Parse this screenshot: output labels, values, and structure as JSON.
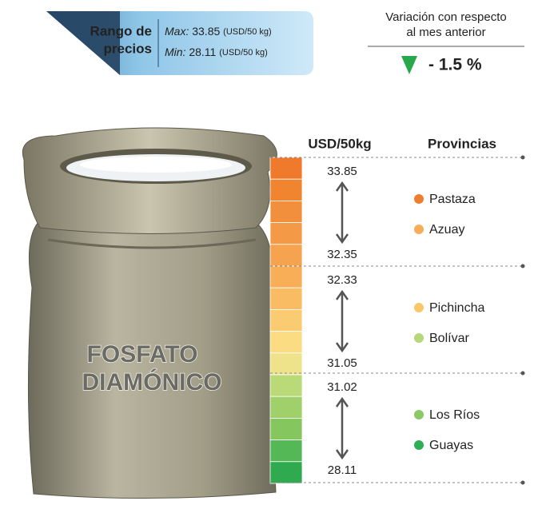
{
  "header": {
    "range_label": [
      "Rango de",
      "precios"
    ],
    "max_label": "Max:",
    "max_value": "33.85",
    "max_unit": "(USD/50 kg)",
    "min_label": "Min:",
    "min_value": "28.11",
    "min_unit": "(USD/50 kg)"
  },
  "variation": {
    "title": [
      "Variación con respecto",
      "al mes anterior"
    ],
    "value": "- 1.5 %",
    "color": "#27a84a"
  },
  "product": [
    "FOSFATO",
    "DIAMÓNICO"
  ],
  "table": {
    "price_header": "USD/50kg",
    "province_header": "Provincias",
    "groups": [
      {
        "high": "33.85",
        "low": "32.35",
        "provinces": [
          {
            "name": "Pastaza",
            "color": "#ee7d32"
          },
          {
            "name": "Azuay",
            "color": "#f6ad5a"
          }
        ]
      },
      {
        "high": "32.33",
        "low": "31.05",
        "provinces": [
          {
            "name": "Pichincha",
            "color": "#f9c76a"
          },
          {
            "name": "Bolívar",
            "color": "#b6d77a"
          }
        ]
      },
      {
        "high": "31.02",
        "low": "28.11",
        "provinces": [
          {
            "name": "Los Ríos",
            "color": "#8cc866"
          },
          {
            "name": "Guayas",
            "color": "#2fae55"
          }
        ]
      }
    ]
  }
}
